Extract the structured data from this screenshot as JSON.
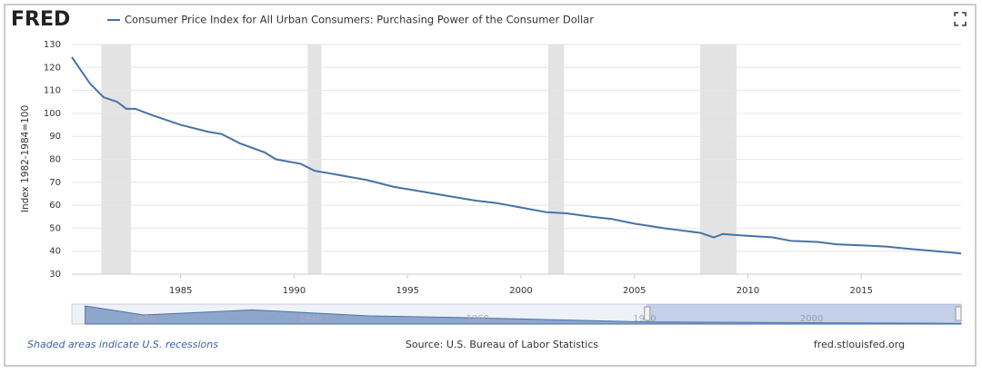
{
  "logo": "FRED",
  "chart_data": {
    "type": "line",
    "title": "Consumer Price Index for All Urban Consumers: Purchasing Power of the Consumer Dollar",
    "y_label": "Index 1982-1984=100",
    "xlim": [
      1980.2,
      2019.4
    ],
    "xticks": [
      1985,
      1990,
      1995,
      2000,
      2005,
      2010,
      2015
    ],
    "ylim": [
      30,
      130
    ],
    "yticks": [
      30,
      40,
      50,
      60,
      70,
      80,
      90,
      100,
      110,
      120,
      130
    ],
    "grid": true,
    "recessions": [
      [
        1981.5,
        1982.8
      ],
      [
        1990.6,
        1991.2
      ],
      [
        2001.2,
        2001.9
      ],
      [
        2007.9,
        2009.5
      ]
    ],
    "series": [
      {
        "name": "Consumer Price Index for All Urban Consumers: Purchasing Power of the Consumer Dollar",
        "color": "#4572a7",
        "x": [
          1980.2,
          1981.0,
          1981.6,
          1982.2,
          1982.6,
          1983.0,
          1983.8,
          1985.0,
          1986.2,
          1986.8,
          1987.6,
          1988.7,
          1989.2,
          1990.3,
          1990.9,
          1991.5,
          1993.2,
          1994.4,
          1995.6,
          1996.8,
          1998.0,
          1998.9,
          2000.0,
          2001.1,
          2002.0,
          2003.1,
          2004.0,
          2005.0,
          2006.3,
          2007.1,
          2007.9,
          2008.5,
          2008.9,
          2009.5,
          2011.1,
          2011.9,
          2013.1,
          2013.9,
          2015.1,
          2016.1,
          2017.1,
          2018.3,
          2018.9,
          2019.4
        ],
        "values": [
          124.5,
          113,
          107,
          105,
          102,
          102,
          99,
          95,
          92,
          91,
          87,
          83,
          80,
          78,
          75,
          74,
          71,
          68,
          66,
          64,
          62,
          61,
          59,
          57,
          56.5,
          55,
          54,
          52,
          50,
          49,
          48,
          46,
          47.5,
          47,
          46,
          44.5,
          44,
          43,
          42.5,
          42,
          41,
          40,
          39.5,
          39
        ]
      }
    ],
    "navigator": {
      "xlim": [
        1911.4,
        2017.9
      ],
      "ylim": [
        0,
        1100
      ],
      "xticks": [
        1920,
        1940,
        1960,
        1980,
        2000
      ],
      "selection": [
        1980.2,
        2019.4
      ],
      "x": [
        1913,
        1920,
        1933,
        1947,
        1960,
        1980,
        2017.9
      ],
      "values": [
        1000,
        500,
        780,
        450,
        340,
        120,
        39
      ]
    },
    "note": "Shaded areas indicate U.S. recessions",
    "source": "Source: U.S. Bureau of Labor Statistics",
    "site": "fred.stlouisfed.org"
  }
}
